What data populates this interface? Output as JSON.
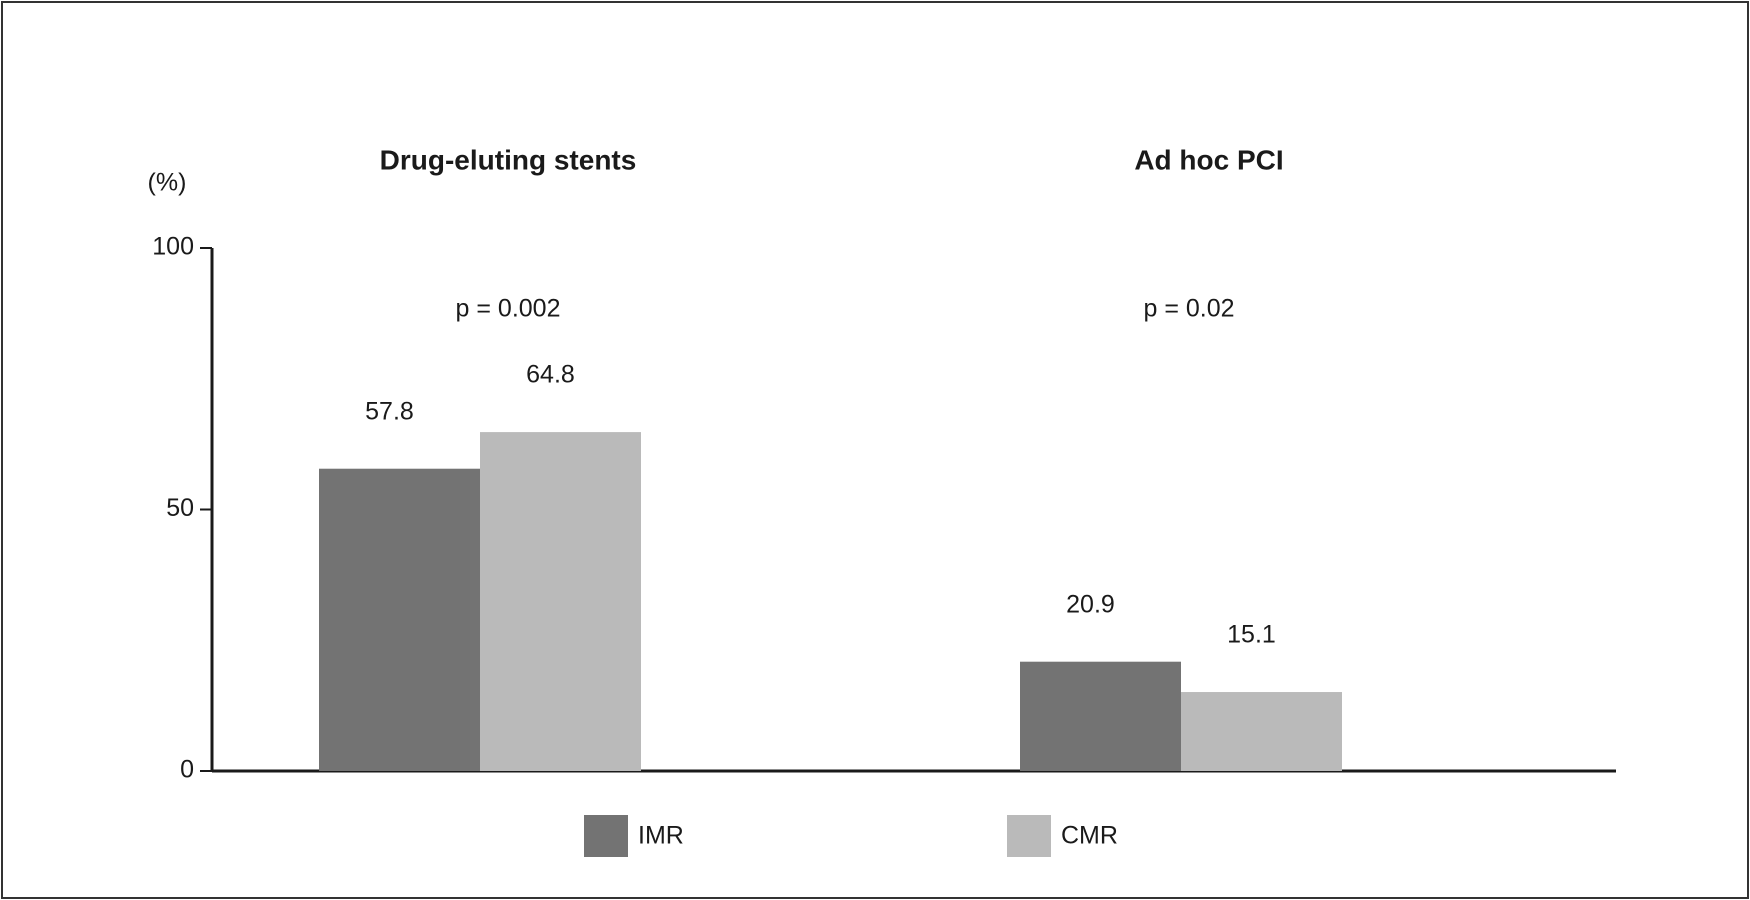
{
  "chart_data": {
    "type": "bar",
    "categories": [
      "Drug-eluting stents",
      "Ad hoc PCI"
    ],
    "series": [
      {
        "name": "IMR",
        "color": "#737373",
        "values": [
          57.8,
          20.9
        ]
      },
      {
        "name": "CMR",
        "color": "#bababa",
        "values": [
          64.8,
          15.1
        ]
      }
    ],
    "y_label": "(%)",
    "ylim": [
      0,
      100
    ],
    "yticks": [
      0,
      50,
      100
    ],
    "annotations": [
      "p = 0.002",
      "p = 0.02"
    ],
    "legend": "bottom"
  }
}
